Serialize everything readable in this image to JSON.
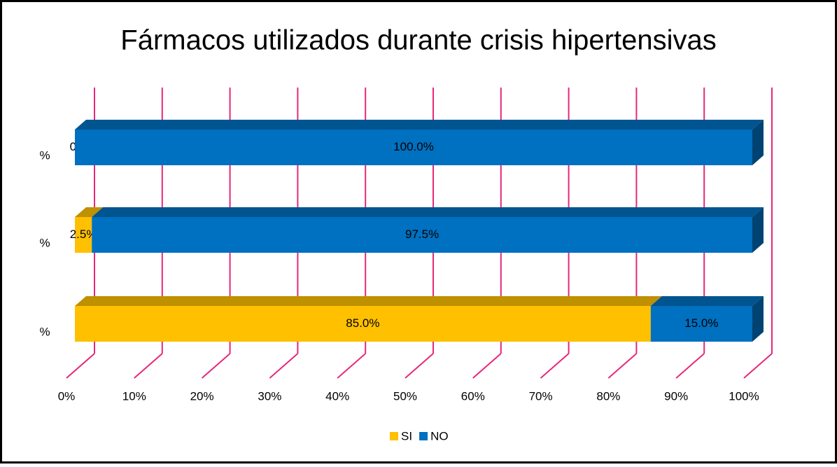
{
  "chart_data": {
    "type": "bar3d_stacked_horizontal",
    "title": "Fármacos utilizados durante crisis hipertensivas",
    "categories": [
      "%",
      "%",
      "%"
    ],
    "series": [
      {
        "name": "SI",
        "color": "#ffc000",
        "values": [
          85.0,
          2.5,
          0.0
        ],
        "value_labels": [
          "85.0%",
          "2.5%",
          "0.0%"
        ]
      },
      {
        "name": "NO",
        "color": "#0070c0",
        "values": [
          15.0,
          97.5,
          100.0
        ],
        "value_labels": [
          "15.0%",
          "97.5%",
          "100.0%"
        ]
      }
    ],
    "xlim": [
      0,
      100
    ],
    "xticks": [
      {
        "value": 0,
        "label": "0%"
      },
      {
        "value": 10,
        "label": "10%"
      },
      {
        "value": 20,
        "label": "20%"
      },
      {
        "value": 30,
        "label": "30%"
      },
      {
        "value": 40,
        "label": "40%"
      },
      {
        "value": 50,
        "label": "50%"
      },
      {
        "value": 60,
        "label": "60%"
      },
      {
        "value": 70,
        "label": "70%"
      },
      {
        "value": 80,
        "label": "80%"
      },
      {
        "value": 90,
        "label": "90%"
      },
      {
        "value": 100,
        "label": "100%"
      }
    ],
    "grid": true,
    "grid_color": "#e6287a",
    "legend": "bottom"
  }
}
